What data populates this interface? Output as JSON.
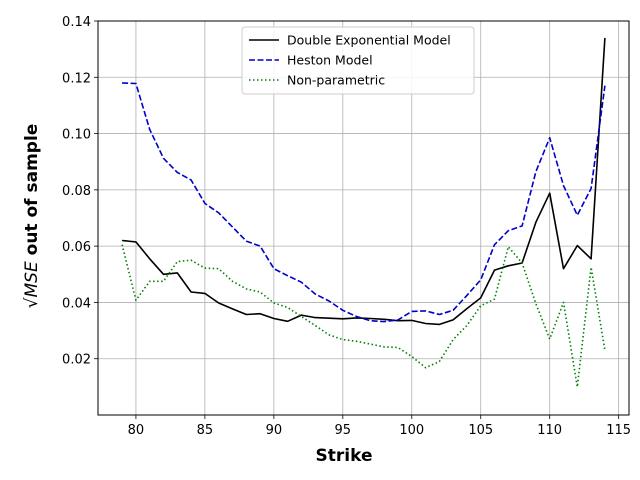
{
  "chart_data": {
    "type": "line",
    "xlabel": "Strike",
    "ylabel_prefix": "√MSE",
    "ylabel_suffix": " out of sample",
    "xlim": [
      77.25,
      115.75
    ],
    "ylim": [
      0.0,
      0.14
    ],
    "xticks": [
      80,
      85,
      90,
      95,
      100,
      105,
      110,
      115
    ],
    "yticks": [
      0.02,
      0.04,
      0.06,
      0.08,
      0.1,
      0.12,
      0.14
    ],
    "ytick_labels": [
      "0.02",
      "0.04",
      "0.06",
      "0.08",
      "0.10",
      "0.12",
      "0.14"
    ],
    "grid": true,
    "legend_position": "top-center",
    "x": [
      79,
      80,
      81,
      82,
      83,
      84,
      85,
      86,
      87,
      88,
      89,
      90,
      91,
      92,
      93,
      94,
      95,
      96,
      97,
      98,
      99,
      100,
      101,
      102,
      103,
      104,
      105,
      106,
      107,
      108,
      109,
      110,
      111,
      112,
      113,
      114
    ],
    "series": [
      {
        "name": "Double Exponential Model",
        "color": "#000000",
        "dash": "solid",
        "values": [
          0.062,
          0.0615,
          0.0555,
          0.05,
          0.0505,
          0.0437,
          0.0432,
          0.0398,
          0.0377,
          0.0357,
          0.036,
          0.0343,
          0.0333,
          0.0355,
          0.0346,
          0.0344,
          0.0342,
          0.0345,
          0.0343,
          0.034,
          0.0335,
          0.0336,
          0.0325,
          0.0322,
          0.0338,
          0.0378,
          0.0416,
          0.0515,
          0.053,
          0.054,
          0.0685,
          0.0788,
          0.052,
          0.0602,
          0.0555,
          0.134
        ]
      },
      {
        "name": "Heston Model",
        "color": "#0000cc",
        "dash": "dashed",
        "values": [
          0.118,
          0.1178,
          0.1015,
          0.0912,
          0.0862,
          0.0835,
          0.0752,
          0.0718,
          0.0668,
          0.0618,
          0.06,
          0.052,
          0.0495,
          0.0472,
          0.043,
          0.0405,
          0.0372,
          0.035,
          0.0335,
          0.0332,
          0.0338,
          0.0368,
          0.037,
          0.0357,
          0.0372,
          0.0425,
          0.048,
          0.0605,
          0.0655,
          0.0672,
          0.0865,
          0.0985,
          0.0815,
          0.071,
          0.0805,
          0.117
        ]
      },
      {
        "name": "Non-parametric",
        "color": "#008000",
        "dash": "dotted",
        "values": [
          0.0605,
          0.0408,
          0.0475,
          0.0475,
          0.0545,
          0.055,
          0.0522,
          0.052,
          0.0475,
          0.0448,
          0.0437,
          0.0398,
          0.0382,
          0.035,
          0.0318,
          0.0285,
          0.0268,
          0.0262,
          0.0252,
          0.0242,
          0.024,
          0.0208,
          0.0168,
          0.019,
          0.0268,
          0.0318,
          0.0388,
          0.0412,
          0.0598,
          0.054,
          0.0395,
          0.027,
          0.04,
          0.01,
          0.0525,
          0.023
        ]
      }
    ]
  }
}
